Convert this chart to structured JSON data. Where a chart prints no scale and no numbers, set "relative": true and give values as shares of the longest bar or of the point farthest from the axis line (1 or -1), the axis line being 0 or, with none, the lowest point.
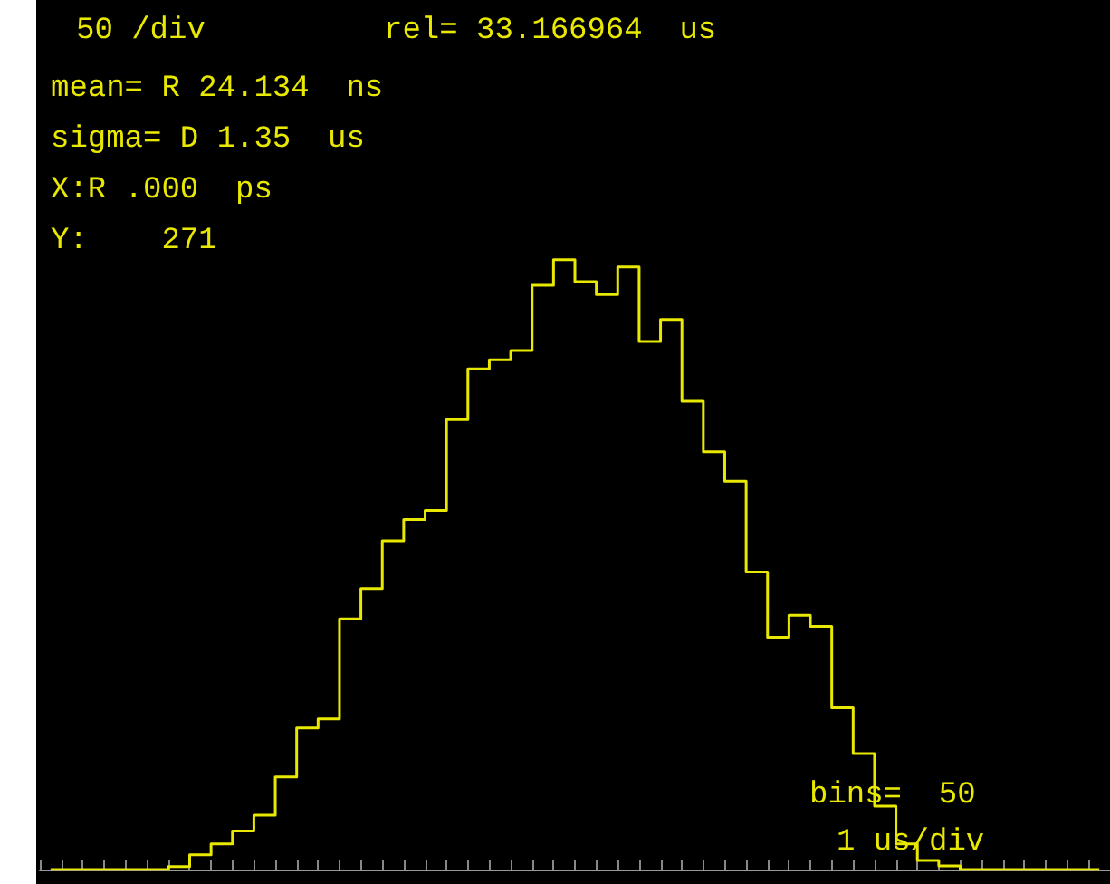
{
  "chart_data": {
    "type": "step",
    "relative": true,
    "grid": false,
    "categories": [
      null,
      null,
      null,
      null,
      null,
      null,
      null,
      null,
      null,
      null,
      null,
      null,
      null,
      null,
      null,
      null,
      null,
      null,
      null,
      null,
      null,
      null,
      null,
      null,
      null,
      null,
      null,
      null,
      null,
      null,
      null,
      null,
      null,
      null,
      null,
      null,
      null,
      null,
      null,
      null,
      null,
      null,
      null,
      null,
      null,
      null,
      null,
      null,
      null,
      null
    ],
    "series": [
      {
        "color": "#e8e800",
        "values": [
          0,
          0,
          0,
          0,
          0,
          0,
          0.005,
          0.024,
          0.042,
          0.063,
          0.089,
          0.152,
          0.232,
          0.247,
          0.411,
          0.461,
          0.539,
          0.574,
          0.589,
          0.738,
          0.821,
          0.836,
          0.851,
          0.958,
          1,
          0.964,
          0.943,
          0.988,
          0.866,
          0.902,
          0.768,
          0.685,
          0.637,
          0.488,
          0.381,
          0.417,
          0.399,
          0.265,
          0.19,
          0.104,
          0.042,
          0.015,
          0.006,
          0,
          0,
          0,
          0,
          0,
          0,
          0
        ]
      }
    ],
    "annotations": [
      "50 /div",
      "rel= 33.166964  us",
      "mean= R 24.134  ns",
      "sigma= D 1.35  us",
      "X:R .000  ps",
      "Y:    271",
      "bins=  50",
      "1 us/div"
    ]
  }
}
